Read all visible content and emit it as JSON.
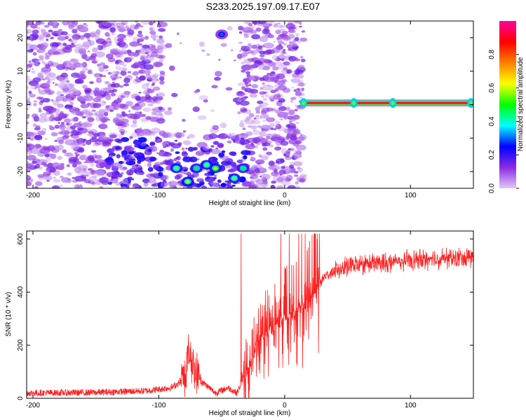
{
  "title": "S233.2025.197.09.17.E07",
  "chart_data": [
    {
      "type": "heatmap",
      "xlabel": "Height of straight line (km)",
      "ylabel": "Frequency (Hz)",
      "xlim": [
        -205,
        150
      ],
      "ylim": [
        -25,
        25
      ],
      "xticks": [
        -200,
        -100,
        0,
        100
      ],
      "yticks": [
        -20,
        -10,
        0,
        10,
        20
      ],
      "colorbar": {
        "label": "Normalized spectral amplitude",
        "range": [
          0,
          1
        ],
        "ticks": [
          "0.0",
          "0.2",
          "0.4",
          "0.6",
          "0.8"
        ],
        "colors": [
          "#e0c8f8",
          "#8a2be2",
          "#0000ff",
          "#00ffff",
          "#00ff00",
          "#ffff00",
          "#ff8000",
          "#ff0000",
          "#ff00a0"
        ]
      },
      "features": {
        "scatter_region_km": [
          -205,
          15
        ],
        "low_frequency_band_hz": [
          -25,
          -15
        ],
        "strong_blobs": [
          {
            "x": -86,
            "y": -19,
            "amp": 0.55
          },
          {
            "x": -77,
            "y": -23,
            "amp": 0.6
          },
          {
            "x": -70,
            "y": -19,
            "amp": 0.5
          },
          {
            "x": -62,
            "y": -18,
            "amp": 0.55
          },
          {
            "x": -55,
            "y": -19,
            "amp": 0.65
          },
          {
            "x": -40,
            "y": -22,
            "amp": 0.55
          },
          {
            "x": -33,
            "y": -19,
            "amp": 0.5
          },
          {
            "x": -50,
            "y": 21,
            "amp": 0.3
          }
        ],
        "tone": {
          "frequency_hz": 0.5,
          "x_range": [
            15,
            150
          ],
          "amp": 0.92
        },
        "tone_spots_km": [
          15,
          55,
          86,
          148
        ]
      }
    },
    {
      "type": "line",
      "xlabel": "Height of straight line (km)",
      "ylabel": "SNR (10 * v/v)",
      "xlim": [
        -205,
        150
      ],
      "ylim": [
        0,
        630
      ],
      "xticks": [
        -200,
        -100,
        0,
        100
      ],
      "yticks": [
        0,
        200,
        400,
        600
      ],
      "color": "#ff2020",
      "baseline_points": [
        [
          -205,
          20
        ],
        [
          -150,
          22
        ],
        [
          -110,
          28
        ],
        [
          -90,
          40
        ],
        [
          -80,
          70
        ],
        [
          -76,
          180
        ],
        [
          -72,
          110
        ],
        [
          -65,
          60
        ],
        [
          -55,
          20
        ],
        [
          -45,
          40
        ],
        [
          -38,
          20
        ],
        [
          -30,
          100
        ],
        [
          -20,
          220
        ],
        [
          -10,
          260
        ],
        [
          0,
          300
        ],
        [
          10,
          330
        ],
        [
          20,
          360
        ],
        [
          26,
          420
        ],
        [
          32,
          460
        ],
        [
          45,
          490
        ],
        [
          60,
          505
        ],
        [
          80,
          510
        ],
        [
          100,
          520
        ],
        [
          120,
          525
        ],
        [
          150,
          530
        ]
      ],
      "spike_region": [
        -35,
        28
      ],
      "spike_max": 620
    }
  ]
}
